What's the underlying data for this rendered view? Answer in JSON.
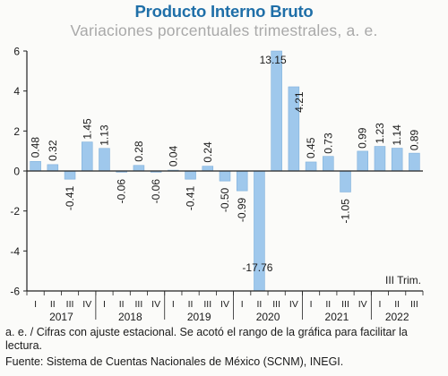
{
  "header": {
    "title": "Producto Interno Bruto",
    "subtitle": "Variaciones porcentuales trimestrales, a. e."
  },
  "footnotes": {
    "note": "a. e. / Cifras con ajuste estacional. Se acotó el rango de la gráfica para facilitar la lectura.",
    "source": "Fuente: Sistema de Cuentas Nacionales de México (SCNM), INEGI."
  },
  "chart_data": {
    "type": "bar",
    "title": "Producto Interno Bruto",
    "subtitle": "Variaciones porcentuales trimestrales, a. e.",
    "categories": [
      "I",
      "II",
      "III",
      "IV",
      "I",
      "II",
      "III",
      "IV",
      "I",
      "II",
      "III",
      "IV",
      "I",
      "II",
      "III",
      "IV",
      "I",
      "II",
      "III",
      "IV",
      "I",
      "II",
      "III"
    ],
    "years": [
      {
        "label": "2017",
        "start": 0,
        "count": 4
      },
      {
        "label": "2018",
        "start": 4,
        "count": 4
      },
      {
        "label": "2019",
        "start": 8,
        "count": 4
      },
      {
        "label": "2020",
        "start": 12,
        "count": 4
      },
      {
        "label": "2021",
        "start": 16,
        "count": 4
      },
      {
        "label": "2022",
        "start": 20,
        "count": 3
      }
    ],
    "values": [
      0.48,
      0.32,
      -0.41,
      1.45,
      1.13,
      -0.06,
      0.28,
      -0.06,
      0.04,
      -0.41,
      0.24,
      -0.5,
      -0.99,
      -17.76,
      13.15,
      4.21,
      0.45,
      0.73,
      -1.05,
      0.99,
      1.23,
      1.14,
      0.89
    ],
    "value_labels": [
      "0.48",
      "0.32",
      "-0.41",
      "1.45",
      "1.13",
      "-0.06",
      "0.28",
      "-0.06",
      "0.04",
      "-0.41",
      "0.24",
      "-0.50",
      "-0.99",
      "-17.76",
      "13.15",
      "4.21",
      "0.45",
      "0.73",
      "-1.05",
      "0.99",
      "1.23",
      "1.14",
      "0.89"
    ],
    "yticks": [
      6,
      4,
      2,
      0,
      -2,
      -4,
      -6
    ],
    "ylim": [
      -6,
      6
    ],
    "xlabel": "",
    "ylabel": "",
    "annotation": "III Trim.",
    "grid": false,
    "colors": {
      "bar": "#9fc8ec",
      "bar_edge": "#7fb0dc",
      "axis": "#222222",
      "text": "#1a1a1a"
    }
  }
}
